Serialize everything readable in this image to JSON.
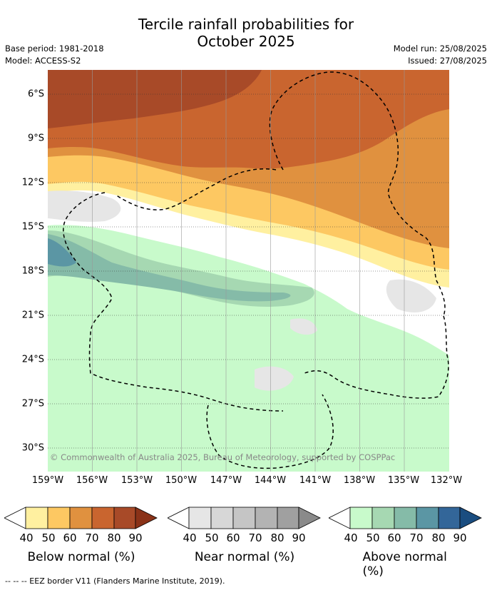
{
  "title_line1": "Tercile rainfall probabilities for",
  "title_line2": "October 2025",
  "base_period": "Base period: 1981-2018",
  "model": "Model: ACCESS-S2",
  "model_run": "Model run: 25/08/2025",
  "issued": "Issued: 27/08/2025",
  "lat_labels": [
    "6°S",
    "9°S",
    "12°S",
    "15°S",
    "18°S",
    "21°S",
    "24°S",
    "27°S",
    "30°S"
  ],
  "lon_labels": [
    "159°W",
    "156°W",
    "153°W",
    "150°W",
    "147°W",
    "144°W",
    "141°W",
    "138°W",
    "135°W",
    "132°W"
  ],
  "copyright": "© Commonwealth of Australia 2025, Bureau of Meteorology, supported by COSPPac",
  "legends": [
    {
      "caption": "Below normal (%)",
      "ticks": [
        "40",
        "50",
        "60",
        "70",
        "80",
        "90"
      ],
      "colors": [
        "#fff0a0",
        "#fdc862",
        "#e0913f",
        "#c9652f",
        "#a84a28",
        "#8a3218"
      ]
    },
    {
      "caption": "Near normal (%)",
      "ticks": [
        "40",
        "50",
        "60",
        "70",
        "80",
        "90"
      ],
      "colors": [
        "#e6e6e6",
        "#d7d7d7",
        "#c5c5c5",
        "#b3b3b3",
        "#a0a0a0",
        "#8a8a8a"
      ]
    },
    {
      "caption": "Above normal (%)",
      "ticks": [
        "40",
        "50",
        "60",
        "70",
        "80",
        "90"
      ],
      "colors": [
        "#c8facb",
        "#a6d8b2",
        "#85bba8",
        "#5b96a4",
        "#336699",
        "#1a4d80"
      ]
    }
  ],
  "footer": "-- -- -- EEZ border V11 (Flanders Marine Institute, 2019)."
}
